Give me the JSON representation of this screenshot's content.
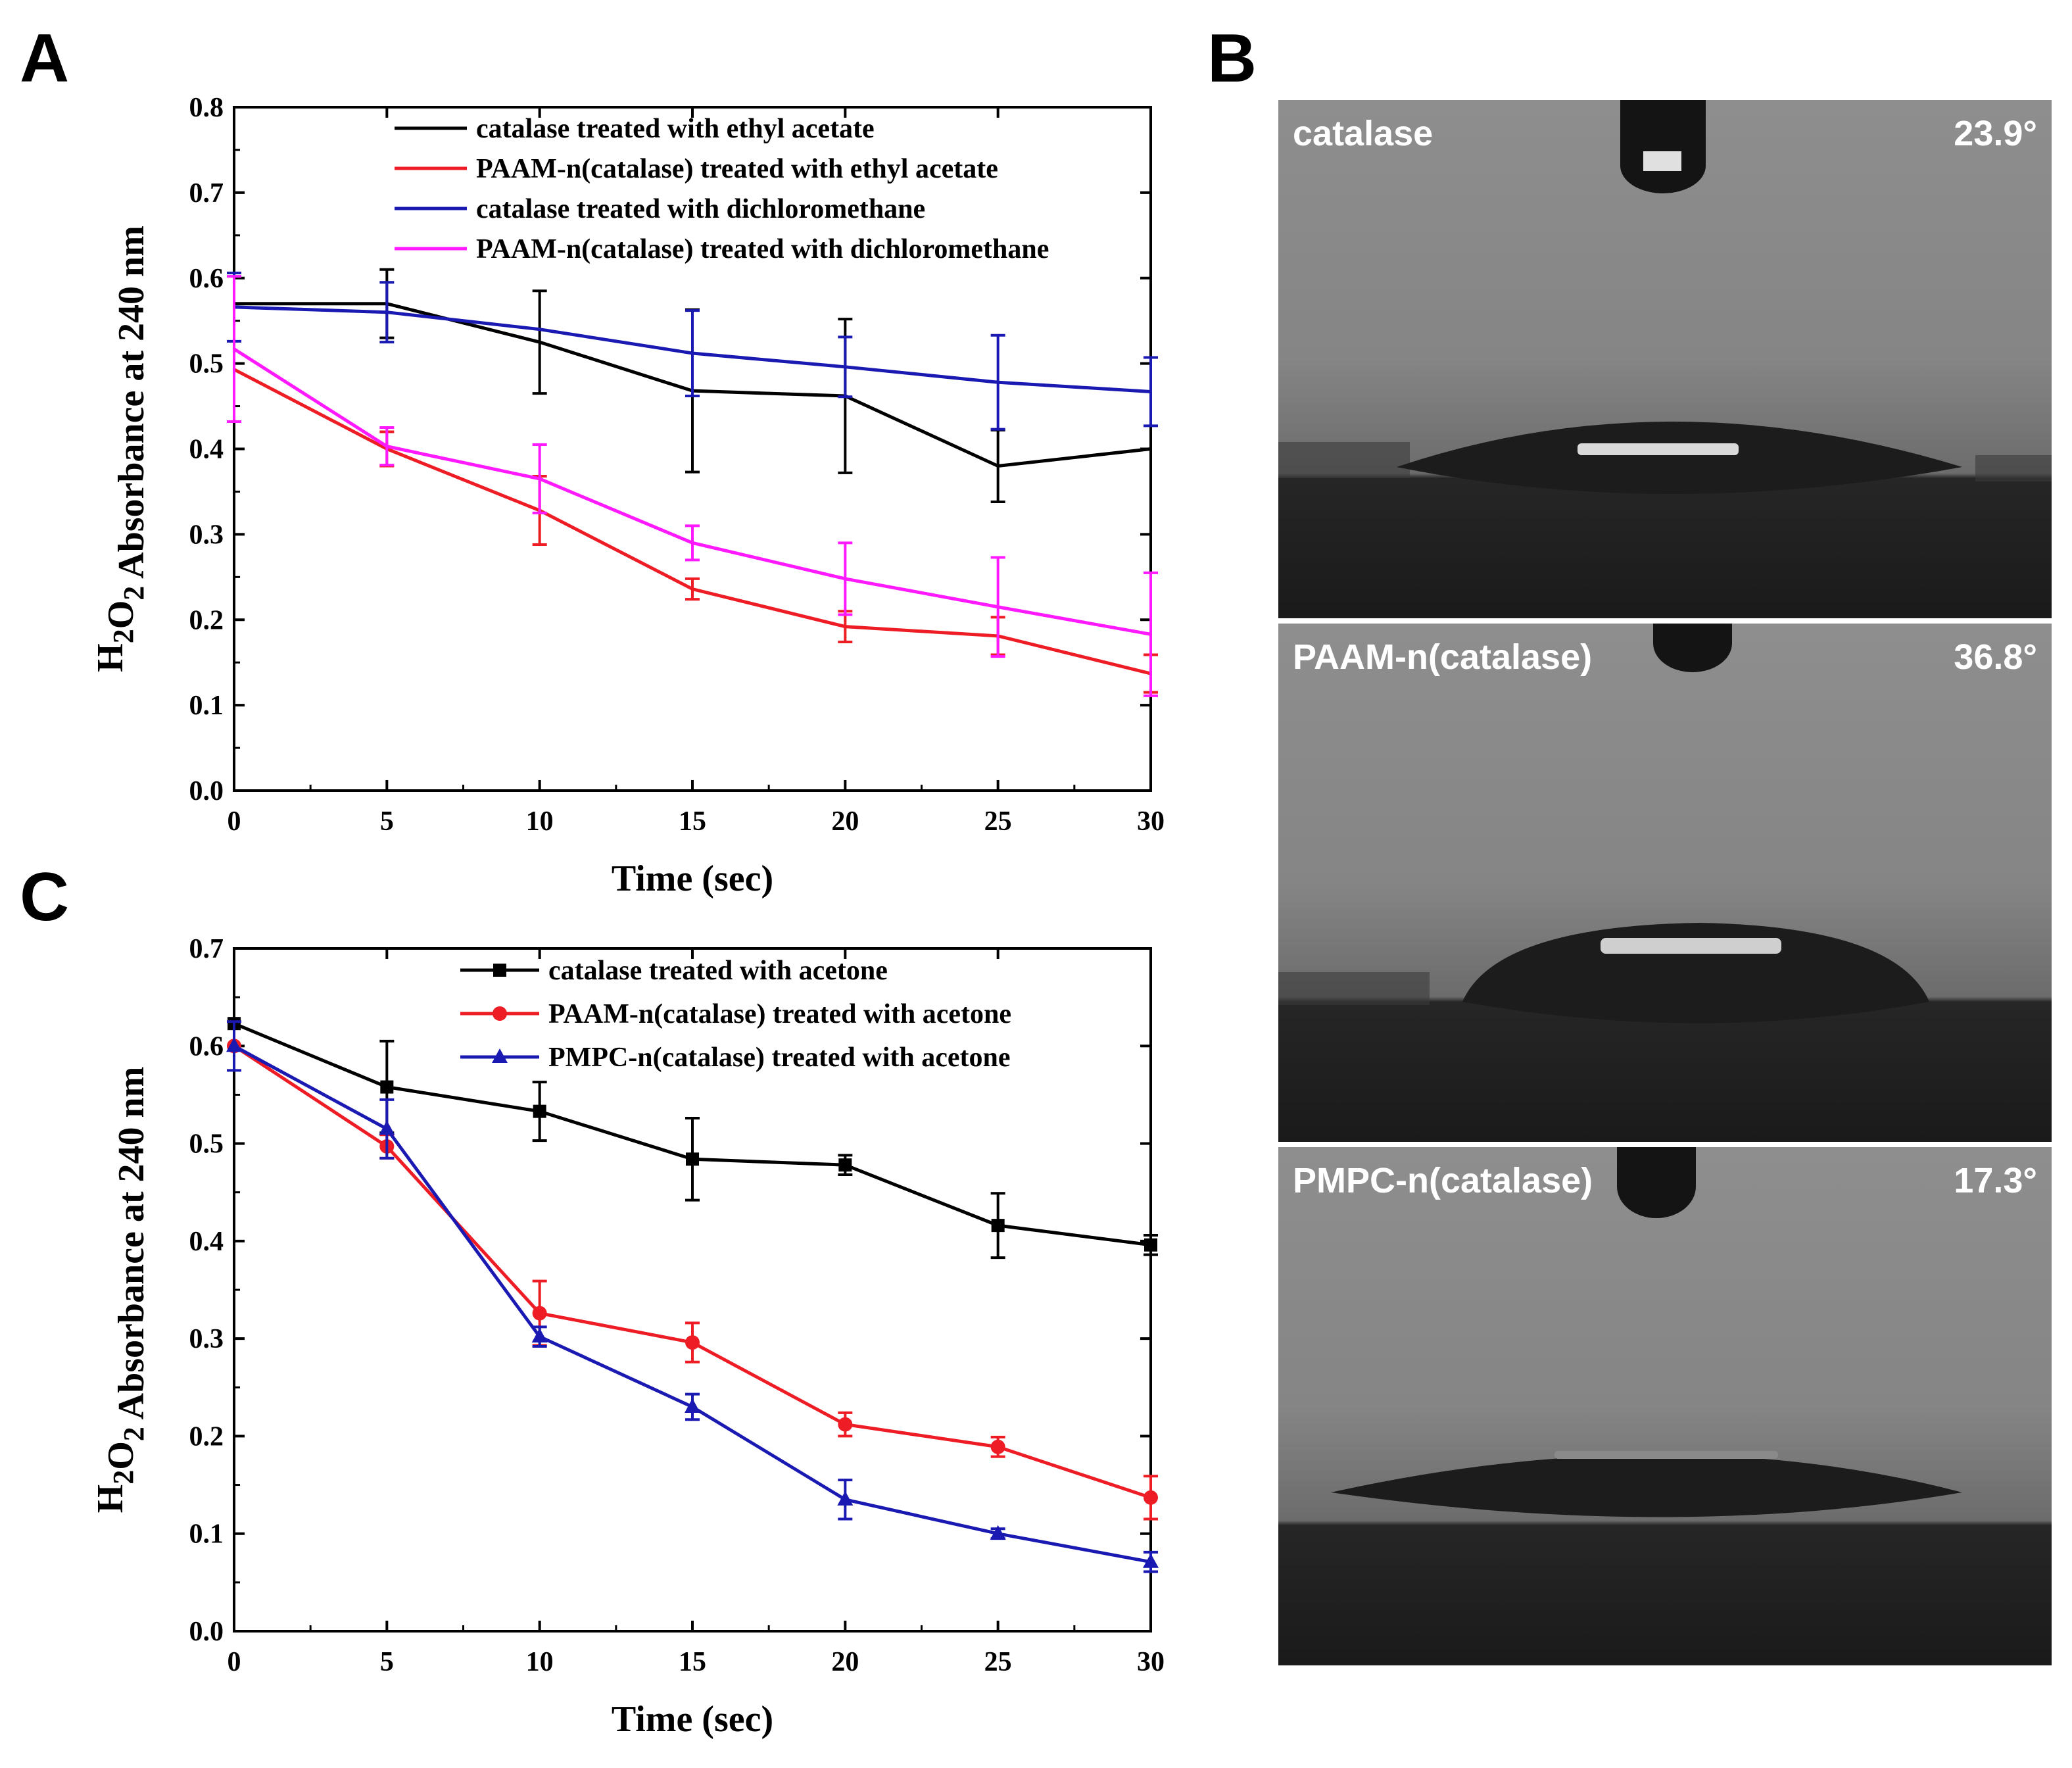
{
  "panels": {
    "A": {
      "letter": "A"
    },
    "B": {
      "letter": "B"
    },
    "C": {
      "letter": "C"
    }
  },
  "colors": {
    "black": "#000000",
    "red": "#ee1c24",
    "blue": "#1a1ab3",
    "magenta": "#ff19ff"
  },
  "chart_data": [
    {
      "id": "A",
      "type": "line",
      "xlabel": "Time (sec)",
      "ylabel": "H2O2 Absorbance at 240 nm",
      "xlim": [
        0,
        30
      ],
      "ylim": [
        0,
        0.8
      ],
      "xticks": [
        0,
        5,
        10,
        15,
        20,
        25,
        30
      ],
      "yticks": [
        0.0,
        0.1,
        0.2,
        0.3,
        0.4,
        0.5,
        0.6,
        0.7,
        0.8
      ],
      "legend_position": "top-right",
      "grid": false,
      "x": [
        0,
        5,
        10,
        15,
        20,
        25,
        30
      ],
      "series": [
        {
          "name": "catalase treated with ethyl acetate",
          "color": "#000000",
          "marker": "none",
          "values": [
            0.57,
            0.57,
            0.525,
            0.468,
            0.462,
            0.38,
            0.4
          ],
          "errors": [
            0.0,
            0.04,
            0.06,
            0.095,
            0.09,
            0.042,
            0.0
          ]
        },
        {
          "name": "PAAM-n(catalase) treated with ethyl acetate",
          "color": "#ee1c24",
          "marker": "none",
          "values": [
            0.493,
            0.4,
            0.328,
            0.236,
            0.192,
            0.181,
            0.137
          ],
          "errors": [
            0.0,
            0.02,
            0.04,
            0.012,
            0.018,
            0.022,
            0.022
          ]
        },
        {
          "name": "catalase treated with dichloromethane",
          "color": "#1a1ab3",
          "marker": "none",
          "values": [
            0.566,
            0.56,
            0.54,
            0.512,
            0.496,
            0.478,
            0.467
          ],
          "errors": [
            0.04,
            0.035,
            0.0,
            0.05,
            0.035,
            0.055,
            0.04
          ]
        },
        {
          "name": "PAAM-n(catalase) treated with dichloromethane",
          "color": "#ff19ff",
          "marker": "none",
          "values": [
            0.517,
            0.403,
            0.365,
            0.29,
            0.248,
            0.215,
            0.183
          ],
          "errors": [
            0.085,
            0.022,
            0.04,
            0.02,
            0.042,
            0.058,
            0.072
          ]
        }
      ]
    },
    {
      "id": "C",
      "type": "line",
      "xlabel": "Time (sec)",
      "ylabel": "H2O2 Absorbance at 240 nm",
      "xlim": [
        0,
        30
      ],
      "ylim": [
        0,
        0.7
      ],
      "xticks": [
        0,
        5,
        10,
        15,
        20,
        25,
        30
      ],
      "yticks": [
        0.0,
        0.1,
        0.2,
        0.3,
        0.4,
        0.5,
        0.6,
        0.7
      ],
      "legend_position": "top-right",
      "grid": false,
      "x": [
        0,
        5,
        10,
        15,
        20,
        25,
        30
      ],
      "series": [
        {
          "name": "catalase treated with acetone",
          "color": "#000000",
          "marker": "square",
          "values": [
            0.623,
            0.558,
            0.533,
            0.484,
            0.478,
            0.416,
            0.396
          ],
          "errors": [
            0.0,
            0.047,
            0.03,
            0.042,
            0.01,
            0.033,
            0.01
          ]
        },
        {
          "name": "PAAM-n(catalase) treated with acetone",
          "color": "#ee1c24",
          "marker": "circle",
          "values": [
            0.6,
            0.497,
            0.326,
            0.296,
            0.212,
            0.189,
            0.137
          ],
          "errors": [
            0.0,
            0.012,
            0.033,
            0.02,
            0.012,
            0.01,
            0.022
          ]
        },
        {
          "name": "PMPC-n(catalase) treated with acetone",
          "color": "#1a1ab3",
          "marker": "triangle",
          "values": [
            0.6,
            0.515,
            0.302,
            0.23,
            0.135,
            0.1,
            0.071
          ],
          "errors": [
            0.025,
            0.03,
            0.01,
            0.013,
            0.02,
            0.005,
            0.01
          ]
        }
      ]
    }
  ],
  "photos": [
    {
      "label": "catalase",
      "angle": "23.9°",
      "angle_deg": 23.9
    },
    {
      "label": "PAAM-n(catalase)",
      "angle": "36.8°",
      "angle_deg": 36.8
    },
    {
      "label": "PMPC-n(catalase)",
      "angle": "17.3°",
      "angle_deg": 17.3
    }
  ]
}
